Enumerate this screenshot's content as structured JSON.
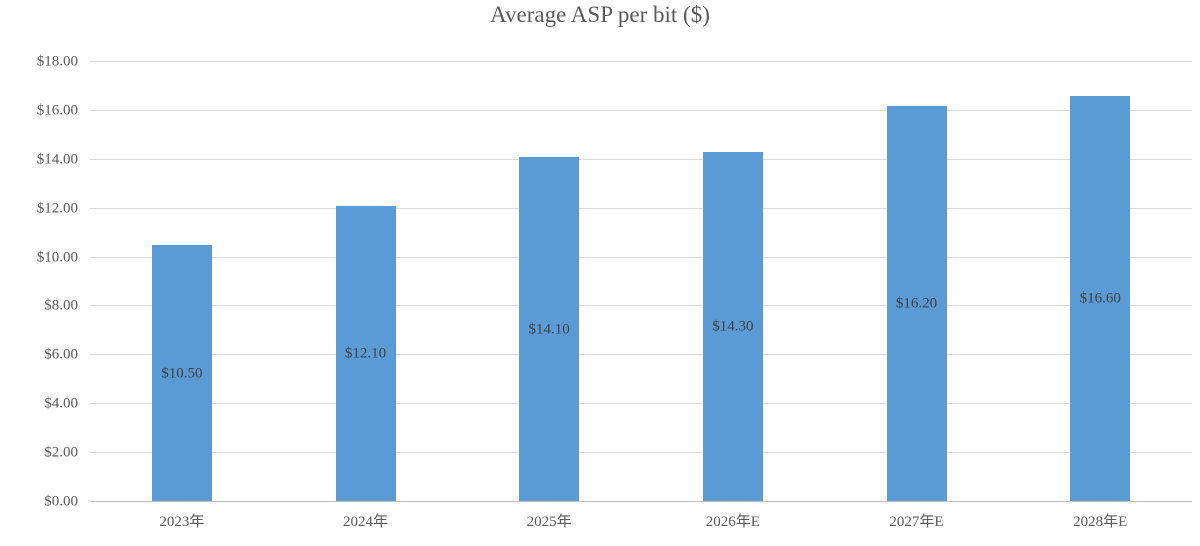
{
  "chart_data": {
    "type": "bar",
    "title": "Average ASP per bit ($)",
    "categories": [
      "2023年",
      "2024年",
      "2025年",
      "2026年E",
      "2027年E",
      "2028年E"
    ],
    "values": [
      10.5,
      12.1,
      14.1,
      14.3,
      16.2,
      16.6
    ],
    "data_labels": [
      "$10.50",
      "$12.10",
      "$14.10",
      "$14.30",
      "$16.20",
      "$16.60"
    ],
    "xlabel": "",
    "ylabel": "",
    "ylim": [
      0,
      18
    ],
    "ytick_step": 2,
    "ytick_labels": [
      "$0.00",
      "$2.00",
      "$4.00",
      "$6.00",
      "$8.00",
      "$10.00",
      "$12.00",
      "$14.00",
      "$16.00",
      "$18.00"
    ],
    "grid": true,
    "legend": "none",
    "bar_color": "#5b9bd5",
    "title_color": "#595959",
    "axis_text_color": "#595959",
    "data_label_color": "#404040",
    "gridline_color": "#d9d9d9"
  }
}
